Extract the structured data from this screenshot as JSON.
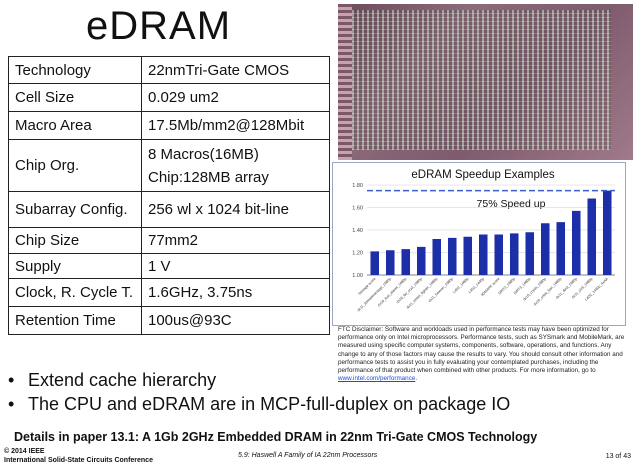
{
  "slide": {
    "title": "eDRAM"
  },
  "spec_table": [
    {
      "key": "Technology",
      "value": "22nmTri-Gate CMOS"
    },
    {
      "key": "Cell Size",
      "value": "0.029 um2"
    },
    {
      "key": "Macro Area",
      "value": "17.5Mb/mm2@128Mbit"
    },
    {
      "key": "Chip Org.",
      "value": "8 Macros(16MB)",
      "value2": "Chip:128MB array"
    },
    {
      "key": "Subarray Config.",
      "value": "256 wl x 1024 bit-line"
    },
    {
      "key": "Chip Size",
      "value": "77mm2"
    },
    {
      "key": "Supply",
      "value": "1 V"
    },
    {
      "key": "Clock, R. Cycle T.",
      "value": "1.6GHz, 3.75ns"
    },
    {
      "key": "Retention Time",
      "value": "100us@93C"
    }
  ],
  "chart_data": {
    "type": "bar",
    "title": "eDRAM Speedup Examples",
    "annotation": "75% Speed up",
    "reference_line": 1.75,
    "ylim": [
      1.0,
      1.8
    ],
    "yticks": [
      "1.00",
      "1.20",
      "1.40",
      "1.60",
      "1.80"
    ],
    "categories": [
      "Vantage score",
      "dx11_3dmarkvantage_1080p",
      "dx10_lost_planet_1080p",
      "dx10_far_cry2_1080p",
      "dx11_street_fighter_1080p",
      "dx11_heaven_1080p",
      "L4D2_1080p",
      "L4D2_1440p",
      "3DMARK score",
      "DiRT2_1080p",
      "DiRT3_1080p",
      "dx10_crysis_1080p",
      "dx10_crisis_fpsr_1080p",
      "dx11_dirt3_1080p",
      "dx11_civ5_1080p",
      "L4D2_1440p_4xAA"
    ],
    "values": [
      1.21,
      1.22,
      1.23,
      1.25,
      1.32,
      1.33,
      1.34,
      1.36,
      1.36,
      1.37,
      1.38,
      1.46,
      1.47,
      1.57,
      1.68,
      1.75
    ],
    "colors": {
      "bar": "#1c2fa8",
      "reference": "#3a5fc8",
      "grid": "#d0d0d0"
    }
  },
  "disclaimer": {
    "text": "FTC Disclaimer: Software and workloads used in performance tests may have been optimized for performance only on Intel microprocessors. Performance tests, such as SYSmark and MobileMark, are measured using specific computer systems, components, software, operations, and functions. Any change to any of those factors may cause the results to vary. You should consult other information and performance tests to assist you in fully evaluating your contemplated purchases, including the performance of that product when combined with other products. For more information, go to ",
    "link": "www.intel.com/performance",
    "tail": "."
  },
  "bullets": [
    "Extend cache hierarchy",
    "The CPU and eDRAM are in MCP-full-duplex on package IO"
  ],
  "details": "Details in paper 13.1: A 1Gb 2GHz Embedded DRAM in 22nm Tri-Gate CMOS Technology",
  "footer": {
    "copyright": "© 2014 IEEE",
    "conference": "International Solid-State Circuits Conference",
    "session": "5.9: Haswell A Family of IA 22nm Processors",
    "page": "13 of 43"
  }
}
